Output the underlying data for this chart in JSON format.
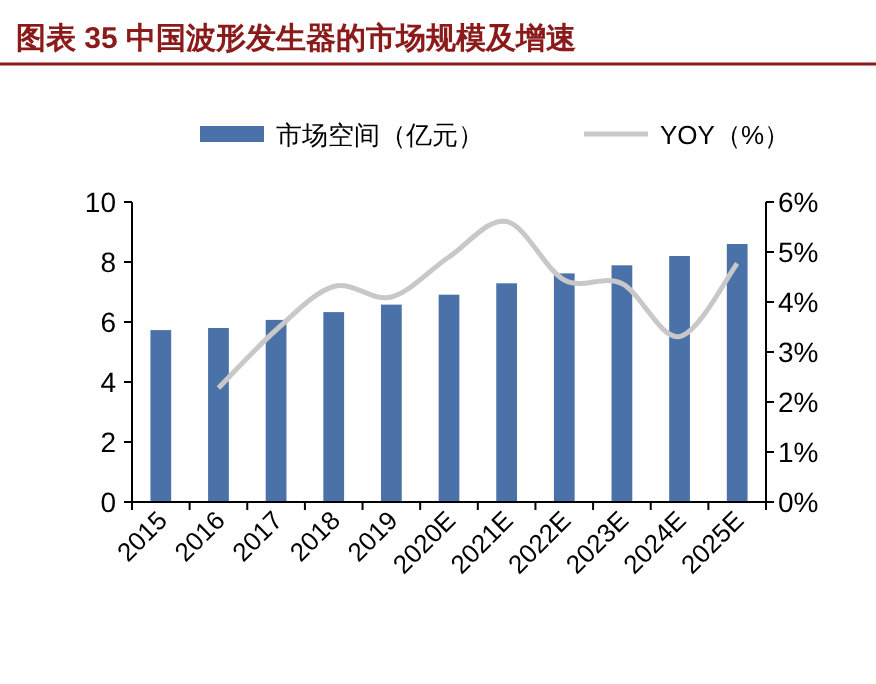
{
  "chart_data": {
    "type": "bar",
    "title": "图表 35 中国波形发生器的市场规模及增速",
    "categories": [
      "2015",
      "2016",
      "2017",
      "2018",
      "2019",
      "2020E",
      "2021E",
      "2022E",
      "2023E",
      "2024E",
      "2025E"
    ],
    "series": [
      {
        "name": "市场空间（亿元）",
        "color": "#4a72a8",
        "values": [
          5.73,
          5.8,
          6.07,
          6.33,
          6.58,
          6.91,
          7.29,
          7.62,
          7.89,
          8.2,
          8.6
        ]
      },
      {
        "name": "YOY（%）",
        "type": "line",
        "axis": "y2",
        "color": "#c8c8c8",
        "values": [
          null,
          2.28,
          3.44,
          4.31,
          4.1,
          4.9,
          5.61,
          4.44,
          4.37,
          3.31,
          4.77
        ]
      }
    ],
    "ylim": [
      0,
      10
    ],
    "yticks": [
      0,
      2,
      4,
      6,
      8,
      10
    ],
    "y2lim": [
      0,
      6
    ],
    "y2ticks": [
      {
        "value": 0,
        "label": "0%"
      },
      {
        "value": 1,
        "label": "1%"
      },
      {
        "value": 2,
        "label": "2%"
      },
      {
        "value": 3,
        "label": "3%"
      },
      {
        "value": 4,
        "label": "4%"
      },
      {
        "value": 5,
        "label": "5%"
      },
      {
        "value": 6,
        "label": "6%"
      }
    ],
    "legend": "top",
    "grid": false,
    "marker": "none"
  }
}
